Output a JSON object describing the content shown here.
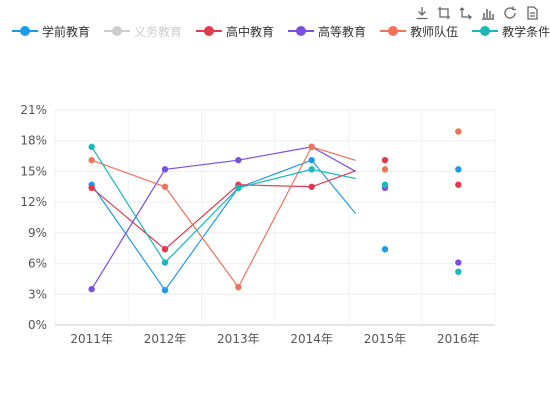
{
  "chart_data": {
    "type": "line",
    "categories": [
      "2011年",
      "2012年",
      "2013年",
      "2014年",
      "2015年",
      "2016年"
    ],
    "ylim": [
      0,
      21
    ],
    "yticks": [
      "0%",
      "3%",
      "6%",
      "9%",
      "12%",
      "15%",
      "18%",
      "21%"
    ],
    "ytick_values": [
      0,
      3,
      6,
      9,
      12,
      15,
      18,
      21
    ],
    "grid": true,
    "legend_position": "top-left",
    "series": [
      {
        "name": "学前教育",
        "color": "#1e9be8",
        "visible": true,
        "values": [
          13.7,
          3.4,
          13.4,
          16.1,
          7.4,
          15.2
        ]
      },
      {
        "name": "义务教育",
        "color": "#cccccc",
        "visible": false,
        "values": [
          null,
          null,
          null,
          null,
          null,
          null
        ]
      },
      {
        "name": "高中教育",
        "color": "#e03a4e",
        "visible": true,
        "values": [
          13.4,
          7.4,
          13.7,
          13.5,
          16.1,
          13.7
        ]
      },
      {
        "name": "高等教育",
        "color": "#7b4fe0",
        "visible": true,
        "values": [
          3.5,
          15.2,
          16.1,
          17.4,
          13.4,
          6.1
        ]
      },
      {
        "name": "教师队伍",
        "color": "#f0735a",
        "visible": true,
        "values": [
          16.1,
          13.5,
          3.7,
          17.4,
          15.2,
          18.9
        ]
      },
      {
        "name": "教学条件",
        "color": "#17b9b9",
        "visible": true,
        "values": [
          17.4,
          6.1,
          13.4,
          15.2,
          13.7,
          5.2
        ]
      }
    ]
  },
  "toolbox": [
    "download-icon",
    "zoom-icon",
    "zoom-reset-icon",
    "bar-chart-icon",
    "restore-icon",
    "data-view-icon"
  ]
}
